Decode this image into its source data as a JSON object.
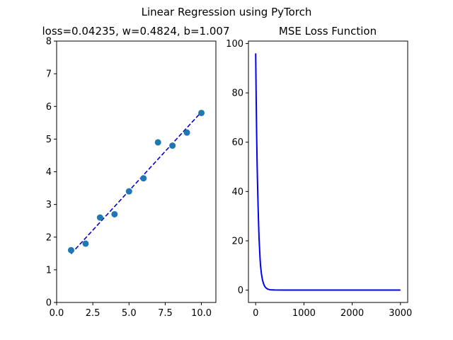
{
  "figure": {
    "suptitle": "Linear Regression using PyTorch",
    "colors": {
      "scatter": "#1f77b4",
      "fit_line": "#0000cc",
      "loss_line": "#0000ff"
    }
  },
  "chart_data": [
    {
      "type": "scatter",
      "title": "loss=0.04235, w=0.4824, b=1.007",
      "xlabel": "",
      "ylabel": "",
      "xlim": [
        0,
        11
      ],
      "ylim": [
        0,
        8
      ],
      "xticks": [
        0,
        2.5,
        5,
        7.5,
        10
      ],
      "xtick_labels": [
        "0.0",
        "2.5",
        "5.0",
        "7.5",
        "10.0"
      ],
      "yticks": [
        0,
        1,
        2,
        3,
        4,
        5,
        6,
        7,
        8
      ],
      "ytick_labels": [
        "0",
        "1",
        "2",
        "3",
        "4",
        "5",
        "6",
        "7",
        "8"
      ],
      "points": {
        "x": [
          1,
          2,
          3,
          4,
          5,
          6,
          7,
          8,
          9,
          10
        ],
        "y": [
          1.6,
          1.8,
          2.6,
          2.7,
          3.4,
          3.8,
          4.9,
          4.8,
          5.2,
          5.8
        ]
      },
      "fit_line": {
        "style": "dashed",
        "w": 0.4824,
        "b": 1.007,
        "x_range": [
          1,
          10
        ]
      },
      "grid": false
    },
    {
      "type": "line",
      "title": "MSE Loss Function",
      "xlabel": "",
      "ylabel": "",
      "xlim": [
        -150,
        3150
      ],
      "ylim": [
        -5,
        101
      ],
      "xticks": [
        0,
        1000,
        2000,
        3000
      ],
      "xtick_labels": [
        "0",
        "1000",
        "2000",
        "3000"
      ],
      "yticks": [
        0,
        20,
        40,
        60,
        80,
        100
      ],
      "ytick_labels": [
        "0",
        "20",
        "40",
        "60",
        "80",
        "100"
      ],
      "series": [
        {
          "x": [
            0,
            10,
            20,
            30,
            40,
            50,
            60,
            70,
            80,
            90,
            100,
            120,
            140,
            160,
            180,
            200,
            220,
            250,
            300,
            400,
            600,
            1000,
            2000,
            3000
          ],
          "y": [
            96,
            78,
            63,
            51,
            42,
            34,
            27,
            21,
            17,
            13,
            10,
            6.5,
            4.2,
            2.8,
            1.8,
            1.2,
            0.8,
            0.4,
            0.15,
            0.06,
            0.045,
            0.043,
            0.042,
            0.042
          ]
        }
      ],
      "grid": false
    }
  ]
}
